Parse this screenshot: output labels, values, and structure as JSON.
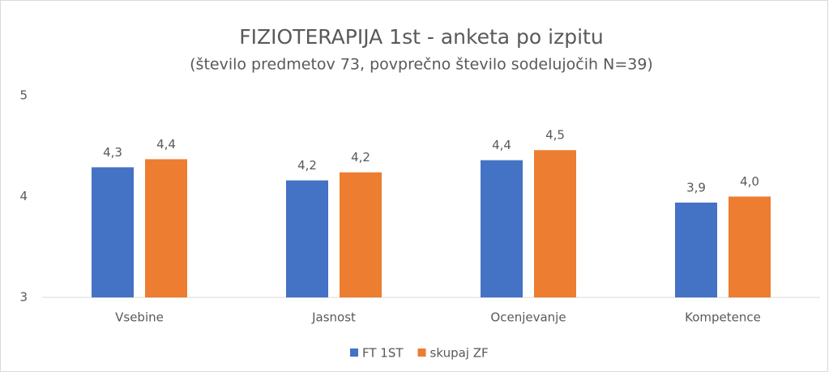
{
  "chart_data": {
    "type": "bar",
    "title": "FIZIOTERAPIJA 1st - anketa po izpitu",
    "subtitle": "(število predmetov 73, povprečno število sodelujočih N=39)",
    "categories": [
      "Vsebine",
      "Jasnost",
      "Ocenjevanje",
      "Kompetence"
    ],
    "series": [
      {
        "name": "FT 1ST",
        "color": "#4472c4",
        "values": [
          4.29,
          4.16,
          4.36,
          3.94
        ],
        "value_labels": [
          "4,3",
          "4,2",
          "4,4",
          "3,9"
        ]
      },
      {
        "name": "skupaj ZF",
        "color": "#ed7d31",
        "values": [
          4.37,
          4.24,
          4.46,
          4.0
        ],
        "value_labels": [
          "4,4",
          "4,2",
          "4,5",
          "4,0"
        ]
      }
    ],
    "ylim": [
      3,
      5
    ],
    "yticks": [
      3,
      4,
      5
    ],
    "grid": false,
    "legend": "bottom"
  }
}
